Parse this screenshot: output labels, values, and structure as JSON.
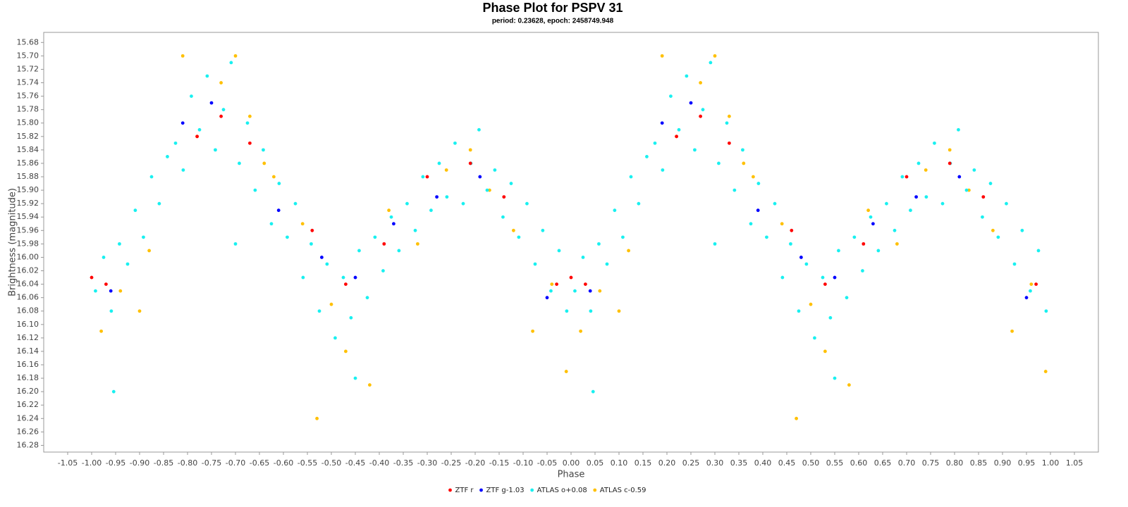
{
  "chart_data": {
    "type": "scatter",
    "title": "Phase Plot for PSPV 31",
    "subtitle": "period: 0.23628, epoch: 2458749.948",
    "x_label": "Phase",
    "y_label": "Brightness (magnitude)",
    "xlim": [
      -1.1,
      1.1
    ],
    "ylim": [
      15.665,
      16.29
    ],
    "y_inverted": true,
    "legend": "bottom",
    "xticks": [
      -1.05,
      {
        "value": -1,
        "label": "-1.00"
      },
      -0.95,
      {
        "value": -0.9,
        "label": "-0.90"
      },
      -0.85,
      {
        "value": -0.8,
        "label": "-0.80"
      },
      -0.75,
      {
        "value": -0.7,
        "label": "-0.70"
      },
      -0.65,
      {
        "value": -0.6,
        "label": "-0.60"
      },
      -0.55,
      {
        "value": -0.5,
        "label": "-0.50"
      },
      -0.45,
      {
        "value": -0.4,
        "label": "-0.40"
      },
      -0.35,
      {
        "value": -0.3,
        "label": "-0.30"
      },
      -0.25,
      {
        "value": -0.2,
        "label": "-0.20"
      },
      -0.15,
      {
        "value": -0.1,
        "label": "-0.10"
      },
      -0.05,
      {
        "value": 0,
        "label": "0.00"
      },
      0.05,
      {
        "value": 0.1,
        "label": "0.10"
      },
      0.15,
      {
        "value": 0.2,
        "label": "0.20"
      },
      0.25,
      {
        "value": 0.3,
        "label": "0.30"
      },
      0.35,
      {
        "value": 0.4,
        "label": "0.40"
      },
      0.45,
      {
        "value": 0.5,
        "label": "0.50"
      },
      0.55,
      {
        "value": 0.6,
        "label": "0.60"
      },
      0.65,
      {
        "value": 0.7,
        "label": "0.70"
      },
      0.75,
      {
        "value": 0.8,
        "label": "0.80"
      },
      0.85,
      {
        "value": 0.9,
        "label": "0.90"
      },
      0.95,
      {
        "value": 1,
        "label": "1.00"
      },
      1.05
    ],
    "yticks": [
      15.68,
      {
        "value": 15.7,
        "label": "15.70"
      },
      15.72,
      15.74,
      15.76,
      15.78,
      {
        "value": 15.8,
        "label": "15.80"
      },
      15.82,
      15.84,
      15.86,
      15.88,
      {
        "value": 15.9,
        "label": "15.90"
      },
      15.92,
      15.94,
      15.96,
      15.98,
      {
        "value": 16,
        "label": "16.00"
      },
      16.02,
      16.04,
      16.06,
      16.08,
      {
        "value": 16.1,
        "label": "16.10"
      },
      16.12,
      16.14,
      16.16,
      16.18,
      {
        "value": 16.2,
        "label": "16.20"
      },
      16.22,
      16.24,
      16.26,
      16.28
    ],
    "series": [
      {
        "name": "ZTF r",
        "color": "#ff0000",
        "x": [
          0,
          0.03,
          0.22,
          0.27,
          0.33,
          0.46,
          0.53,
          0.61,
          0.7,
          0.79,
          0.86,
          0.97,
          -1,
          -0.97,
          -0.78,
          -0.73,
          -0.67,
          -0.54,
          -0.47,
          -0.39,
          -0.3,
          -0.21,
          -0.14,
          -0.03
        ],
        "values": [
          16.03,
          16.04,
          15.82,
          15.79,
          15.83,
          15.96,
          16.04,
          15.98,
          15.88,
          15.86,
          15.91,
          16.04,
          16.03,
          16.04,
          15.82,
          15.79,
          15.83,
          15.96,
          16.04,
          15.98,
          15.88,
          15.86,
          15.91,
          16.04
        ]
      },
      {
        "name": "ZTF g-1.03",
        "color": "#0000ff",
        "x": [
          0.04,
          0.19,
          0.25,
          0.39,
          0.48,
          0.55,
          0.63,
          0.72,
          0.81,
          0.95,
          -0.96,
          -0.81,
          -0.75,
          -0.61,
          -0.52,
          -0.45,
          -0.37,
          -0.28,
          -0.19,
          -0.05
        ],
        "values": [
          16.05,
          15.8,
          15.77,
          15.93,
          16,
          16.03,
          15.95,
          15.91,
          15.88,
          16.06,
          16.05,
          15.8,
          15.77,
          15.93,
          16,
          16.03,
          15.95,
          15.91,
          15.88,
          16.06
        ]
      },
      {
        "name": "ATLAS o+0.08",
        "color": "#19f0f0",
        "x": [
          0.008,
          0.025,
          0.041,
          0.058,
          0.075,
          0.091,
          0.108,
          0.125,
          0.141,
          0.158,
          0.175,
          0.191,
          0.208,
          0.225,
          0.241,
          0.258,
          0.275,
          0.291,
          0.308,
          0.325,
          0.341,
          0.358,
          0.375,
          0.391,
          0.408,
          0.425,
          0.441,
          0.458,
          0.475,
          0.491,
          0.508,
          0.525,
          0.541,
          0.558,
          0.575,
          0.591,
          0.608,
          0.625,
          0.641,
          0.658,
          0.675,
          0.691,
          0.708,
          0.725,
          0.741,
          0.758,
          0.775,
          0.791,
          0.808,
          0.825,
          0.841,
          0.858,
          0.875,
          0.891,
          0.908,
          0.925,
          0.941,
          0.958,
          0.975,
          0.991,
          0.55,
          0.046,
          0.3,
          -0.992,
          -0.975,
          -0.959,
          -0.942,
          -0.925,
          -0.909,
          -0.892,
          -0.875,
          -0.859,
          -0.842,
          -0.825,
          -0.809,
          -0.792,
          -0.775,
          -0.759,
          -0.742,
          -0.725,
          -0.709,
          -0.692,
          -0.675,
          -0.659,
          -0.642,
          -0.625,
          -0.609,
          -0.592,
          -0.575,
          -0.559,
          -0.542,
          -0.525,
          -0.509,
          -0.492,
          -0.475,
          -0.459,
          -0.442,
          -0.425,
          -0.409,
          -0.392,
          -0.375,
          -0.359,
          -0.342,
          -0.325,
          -0.309,
          -0.292,
          -0.275,
          -0.259,
          -0.242,
          -0.225,
          -0.209,
          -0.192,
          -0.175,
          -0.159,
          -0.142,
          -0.125,
          -0.109,
          -0.092,
          -0.075,
          -0.059,
          -0.042,
          -0.025,
          -0.009,
          -0.45,
          -0.954,
          -0.7
        ],
        "values": [
          16.05,
          16,
          16.08,
          15.98,
          16.01,
          15.93,
          15.97,
          15.88,
          15.92,
          15.85,
          15.83,
          15.87,
          15.76,
          15.81,
          15.73,
          15.84,
          15.78,
          15.71,
          15.86,
          15.8,
          15.9,
          15.84,
          15.95,
          15.89,
          15.97,
          15.92,
          16.03,
          15.98,
          16.08,
          16.01,
          16.12,
          16.03,
          16.09,
          15.99,
          16.06,
          15.97,
          16.02,
          15.94,
          15.99,
          15.92,
          15.96,
          15.88,
          15.93,
          15.86,
          15.91,
          15.83,
          15.92,
          15.86,
          15.81,
          15.9,
          15.87,
          15.94,
          15.89,
          15.97,
          15.92,
          16.01,
          15.96,
          16.05,
          15.99,
          16.08,
          16.18,
          16.2,
          15.98,
          16.05,
          16,
          16.08,
          15.98,
          16.01,
          15.93,
          15.97,
          15.88,
          15.92,
          15.85,
          15.83,
          15.87,
          15.76,
          15.81,
          15.73,
          15.84,
          15.78,
          15.71,
          15.86,
          15.8,
          15.9,
          15.84,
          15.95,
          15.89,
          15.97,
          15.92,
          16.03,
          15.98,
          16.08,
          16.01,
          16.12,
          16.03,
          16.09,
          15.99,
          16.06,
          15.97,
          16.02,
          15.94,
          15.99,
          15.92,
          15.96,
          15.88,
          15.93,
          15.86,
          15.91,
          15.83,
          15.92,
          15.86,
          15.81,
          15.9,
          15.87,
          15.94,
          15.89,
          15.97,
          15.92,
          16.01,
          15.96,
          16.05,
          15.99,
          16.08,
          16.18,
          16.2,
          15.98
        ]
      },
      {
        "name": "ATLAS c-0.59",
        "color": "#ffc000",
        "x": [
          0.02,
          0.06,
          0.12,
          0.19,
          0.22,
          0.27,
          0.3,
          0.33,
          0.38,
          0.44,
          0.47,
          0.5,
          0.53,
          0.58,
          0.62,
          0.68,
          0.74,
          0.79,
          0.83,
          0.88,
          0.92,
          0.96,
          0.99,
          0.36,
          0.1,
          -0.98,
          -0.94,
          -0.88,
          -0.81,
          -0.78,
          -0.73,
          -0.7,
          -0.67,
          -0.62,
          -0.56,
          -0.53,
          -0.5,
          -0.47,
          -0.42,
          -0.38,
          -0.32,
          -0.26,
          -0.21,
          -0.17,
          -0.12,
          -0.08,
          -0.04,
          -0.01,
          -0.64,
          -0.9
        ],
        "values": [
          16.11,
          16.05,
          15.99,
          15.7,
          15.82,
          15.74,
          15.7,
          15.79,
          15.88,
          15.95,
          16.24,
          16.07,
          16.14,
          16.19,
          15.93,
          15.98,
          15.87,
          15.84,
          15.9,
          15.96,
          16.11,
          16.04,
          16.17,
          15.86,
          16.08,
          16.11,
          16.05,
          15.99,
          15.7,
          15.82,
          15.74,
          15.7,
          15.79,
          15.88,
          15.95,
          16.24,
          16.07,
          16.14,
          16.19,
          15.93,
          15.98,
          15.87,
          15.84,
          15.9,
          15.96,
          16.11,
          16.04,
          16.17,
          15.86,
          16.08
        ]
      }
    ]
  }
}
